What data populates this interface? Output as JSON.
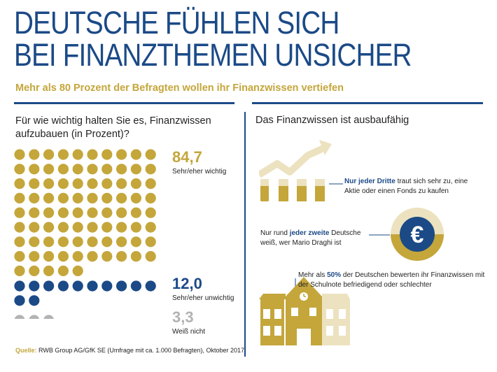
{
  "title": {
    "line1": "DEUTSCHE FÜHLEN SICH",
    "line2": "BEI FINANZTHEMEN UNSICHER"
  },
  "subtitle": "Mehr als 80 Prozent der Befragten wollen ihr Finanzwissen vertiefen",
  "colors": {
    "navy": "#1b4a87",
    "gold": "#c4a63b",
    "grey": "#b3b3b3",
    "lightgold": "#ece2bf"
  },
  "left": {
    "question": "Für wie wichtig halten Sie es, Finanzwissen aufzubauen (in Prozent)?",
    "groups": [
      {
        "value": "84,7",
        "label": "Sehr/eher wichtig",
        "dots": 85,
        "color": "gold"
      },
      {
        "value": "12,0",
        "label": "Sehr/eher unwichtig",
        "dots": 12,
        "color": "navy"
      },
      {
        "value": "3,3",
        "label": "Weiß nicht",
        "dots": 3,
        "color": "grey"
      }
    ]
  },
  "right": {
    "heading": "Das Finanzwissen ist ausbaufähig",
    "fact1": {
      "bold": "Nur jeder Dritte",
      "rest": " traut sich sehr zu, eine Aktie oder einen Fonds zu kaufen"
    },
    "fact2": {
      "pre": "Nur rund ",
      "bold": "jeder zweite",
      "rest": " Deutsche weiß, wer Mario Draghi ist",
      "icon_symbol": "€"
    },
    "fact3": {
      "pre": "Mehr als ",
      "bold": "50%",
      "rest": " der Deutschen bewerten ihr Finanzwissen mit der Schulnote befriedigend oder schlechter"
    }
  },
  "source": {
    "label": "Quelle:",
    "text": " RWB Group AG/GfK SE (Umfrage mit ca. 1.000 Befragten), Oktober 2017"
  }
}
